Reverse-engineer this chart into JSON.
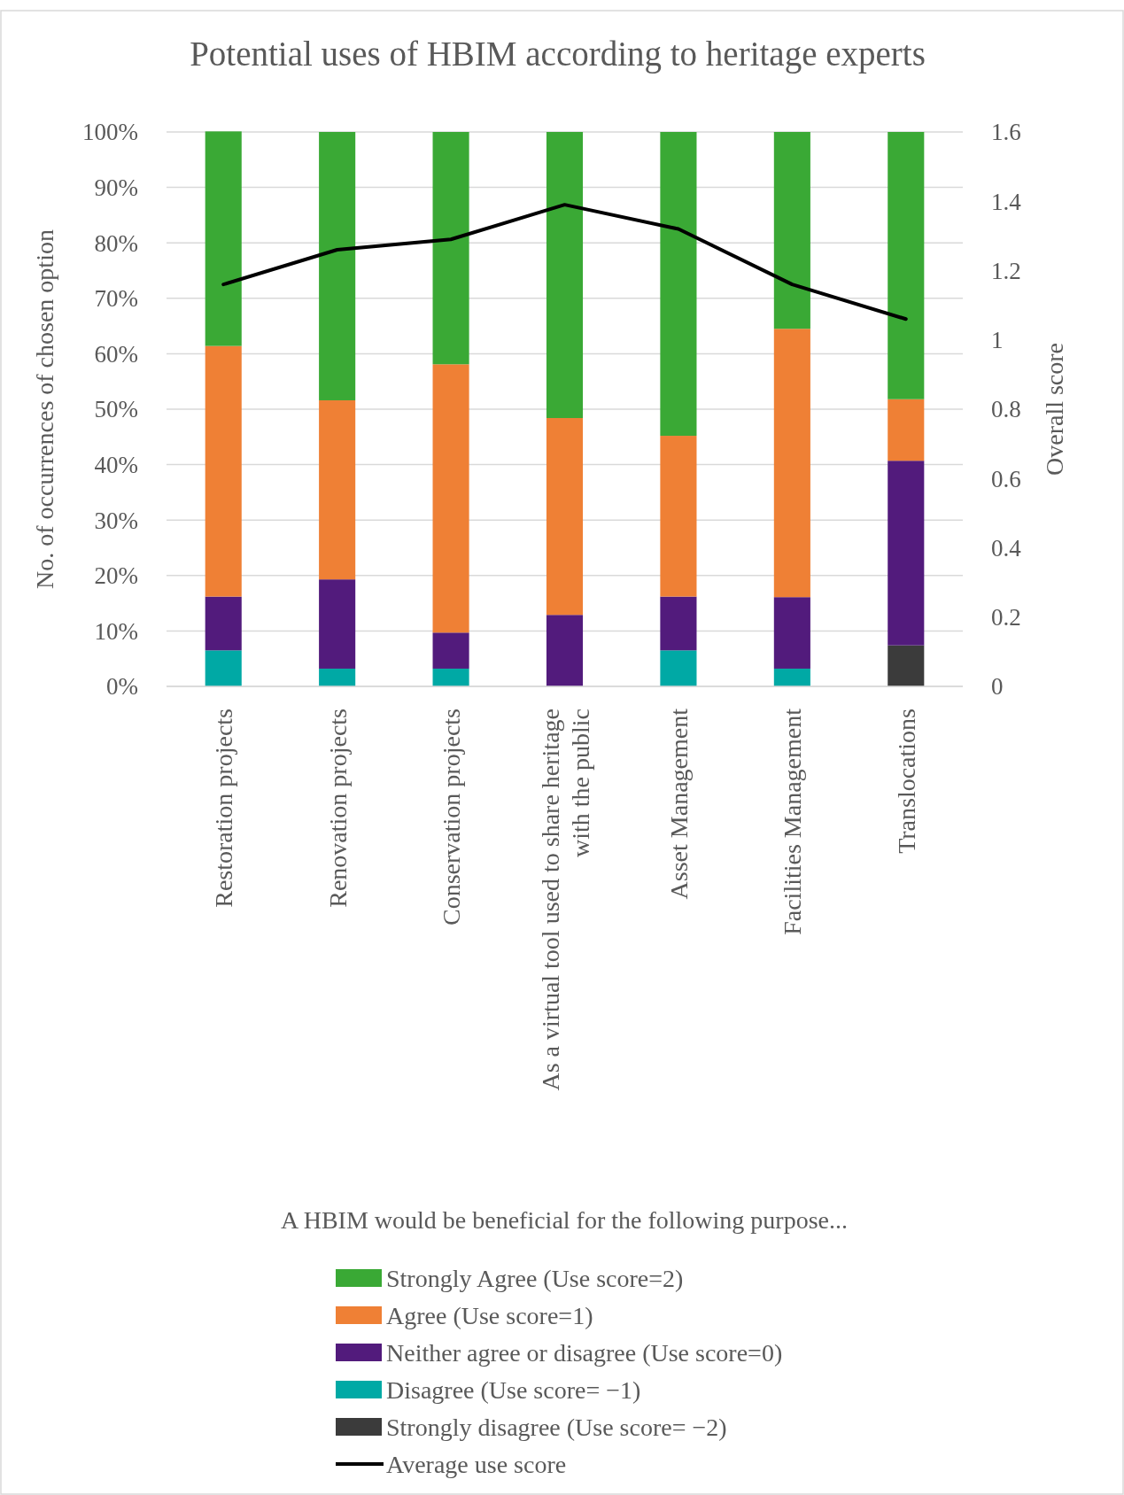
{
  "chart_data": {
    "type": "bar",
    "stacked": true,
    "title": "Potential uses of HBIM according to heritage experts",
    "xlabel": "A HBIM would be beneficial for the following purpose...",
    "ylabel": "No. of occurrences of chosen option",
    "y2label": "Overall score",
    "categories": [
      "Restoration projects",
      "Renovation projects",
      "Conservation projects",
      "As a virtual tool used to share heritage with the public",
      "Asset Management",
      "Facilities Management",
      "Translocations"
    ],
    "series": [
      {
        "name": "Strongly disagree (Use score= −2)",
        "color": "#3b3b3b",
        "values": [
          0,
          0,
          0,
          0,
          0,
          0,
          7.4
        ]
      },
      {
        "name": "Disagree (Use score= −1)",
        "color": "#00a9a5",
        "values": [
          6.5,
          3.2,
          3.2,
          0,
          6.5,
          3.2,
          0
        ]
      },
      {
        "name": "Neither agree or disagree (Use score=0)",
        "color": "#521b7c",
        "values": [
          9.7,
          16.1,
          6.5,
          12.9,
          9.7,
          12.9,
          33.3
        ]
      },
      {
        "name": "Agree (Use score=1)",
        "color": "#ef8035",
        "values": [
          45.2,
          32.3,
          48.4,
          35.5,
          29,
          48.4,
          11.1
        ]
      },
      {
        "name": "Strongly Agree (Use score=2)",
        "color": "#3aa935",
        "values": [
          38.7,
          48.4,
          41.9,
          51.6,
          54.8,
          35.5,
          48.2
        ]
      },
      {
        "name": "Average use score",
        "type": "line",
        "axis": "y2",
        "color": "#000000",
        "values": [
          1.16,
          1.26,
          1.29,
          1.39,
          1.32,
          1.16,
          1.06
        ]
      }
    ],
    "ylim": [
      0,
      100
    ],
    "yticks": [
      {
        "value": 0,
        "label": "0%"
      },
      {
        "value": 10,
        "label": "10%"
      },
      {
        "value": 20,
        "label": "20%"
      },
      {
        "value": 30,
        "label": "30%"
      },
      {
        "value": 40,
        "label": "40%"
      },
      {
        "value": 50,
        "label": "50%"
      },
      {
        "value": 60,
        "label": "60%"
      },
      {
        "value": 70,
        "label": "70%"
      },
      {
        "value": 80,
        "label": "80%"
      },
      {
        "value": 90,
        "label": "90%"
      },
      {
        "value": 100,
        "label": "100%"
      }
    ],
    "y2lim": [
      0,
      1.6
    ],
    "y2ticks": [
      0,
      0.2,
      0.4,
      0.6,
      0.8,
      1,
      1.2,
      1.4,
      1.6
    ],
    "grid": "y",
    "legend": "bottom",
    "marker": "none",
    "line_style": "solid"
  }
}
